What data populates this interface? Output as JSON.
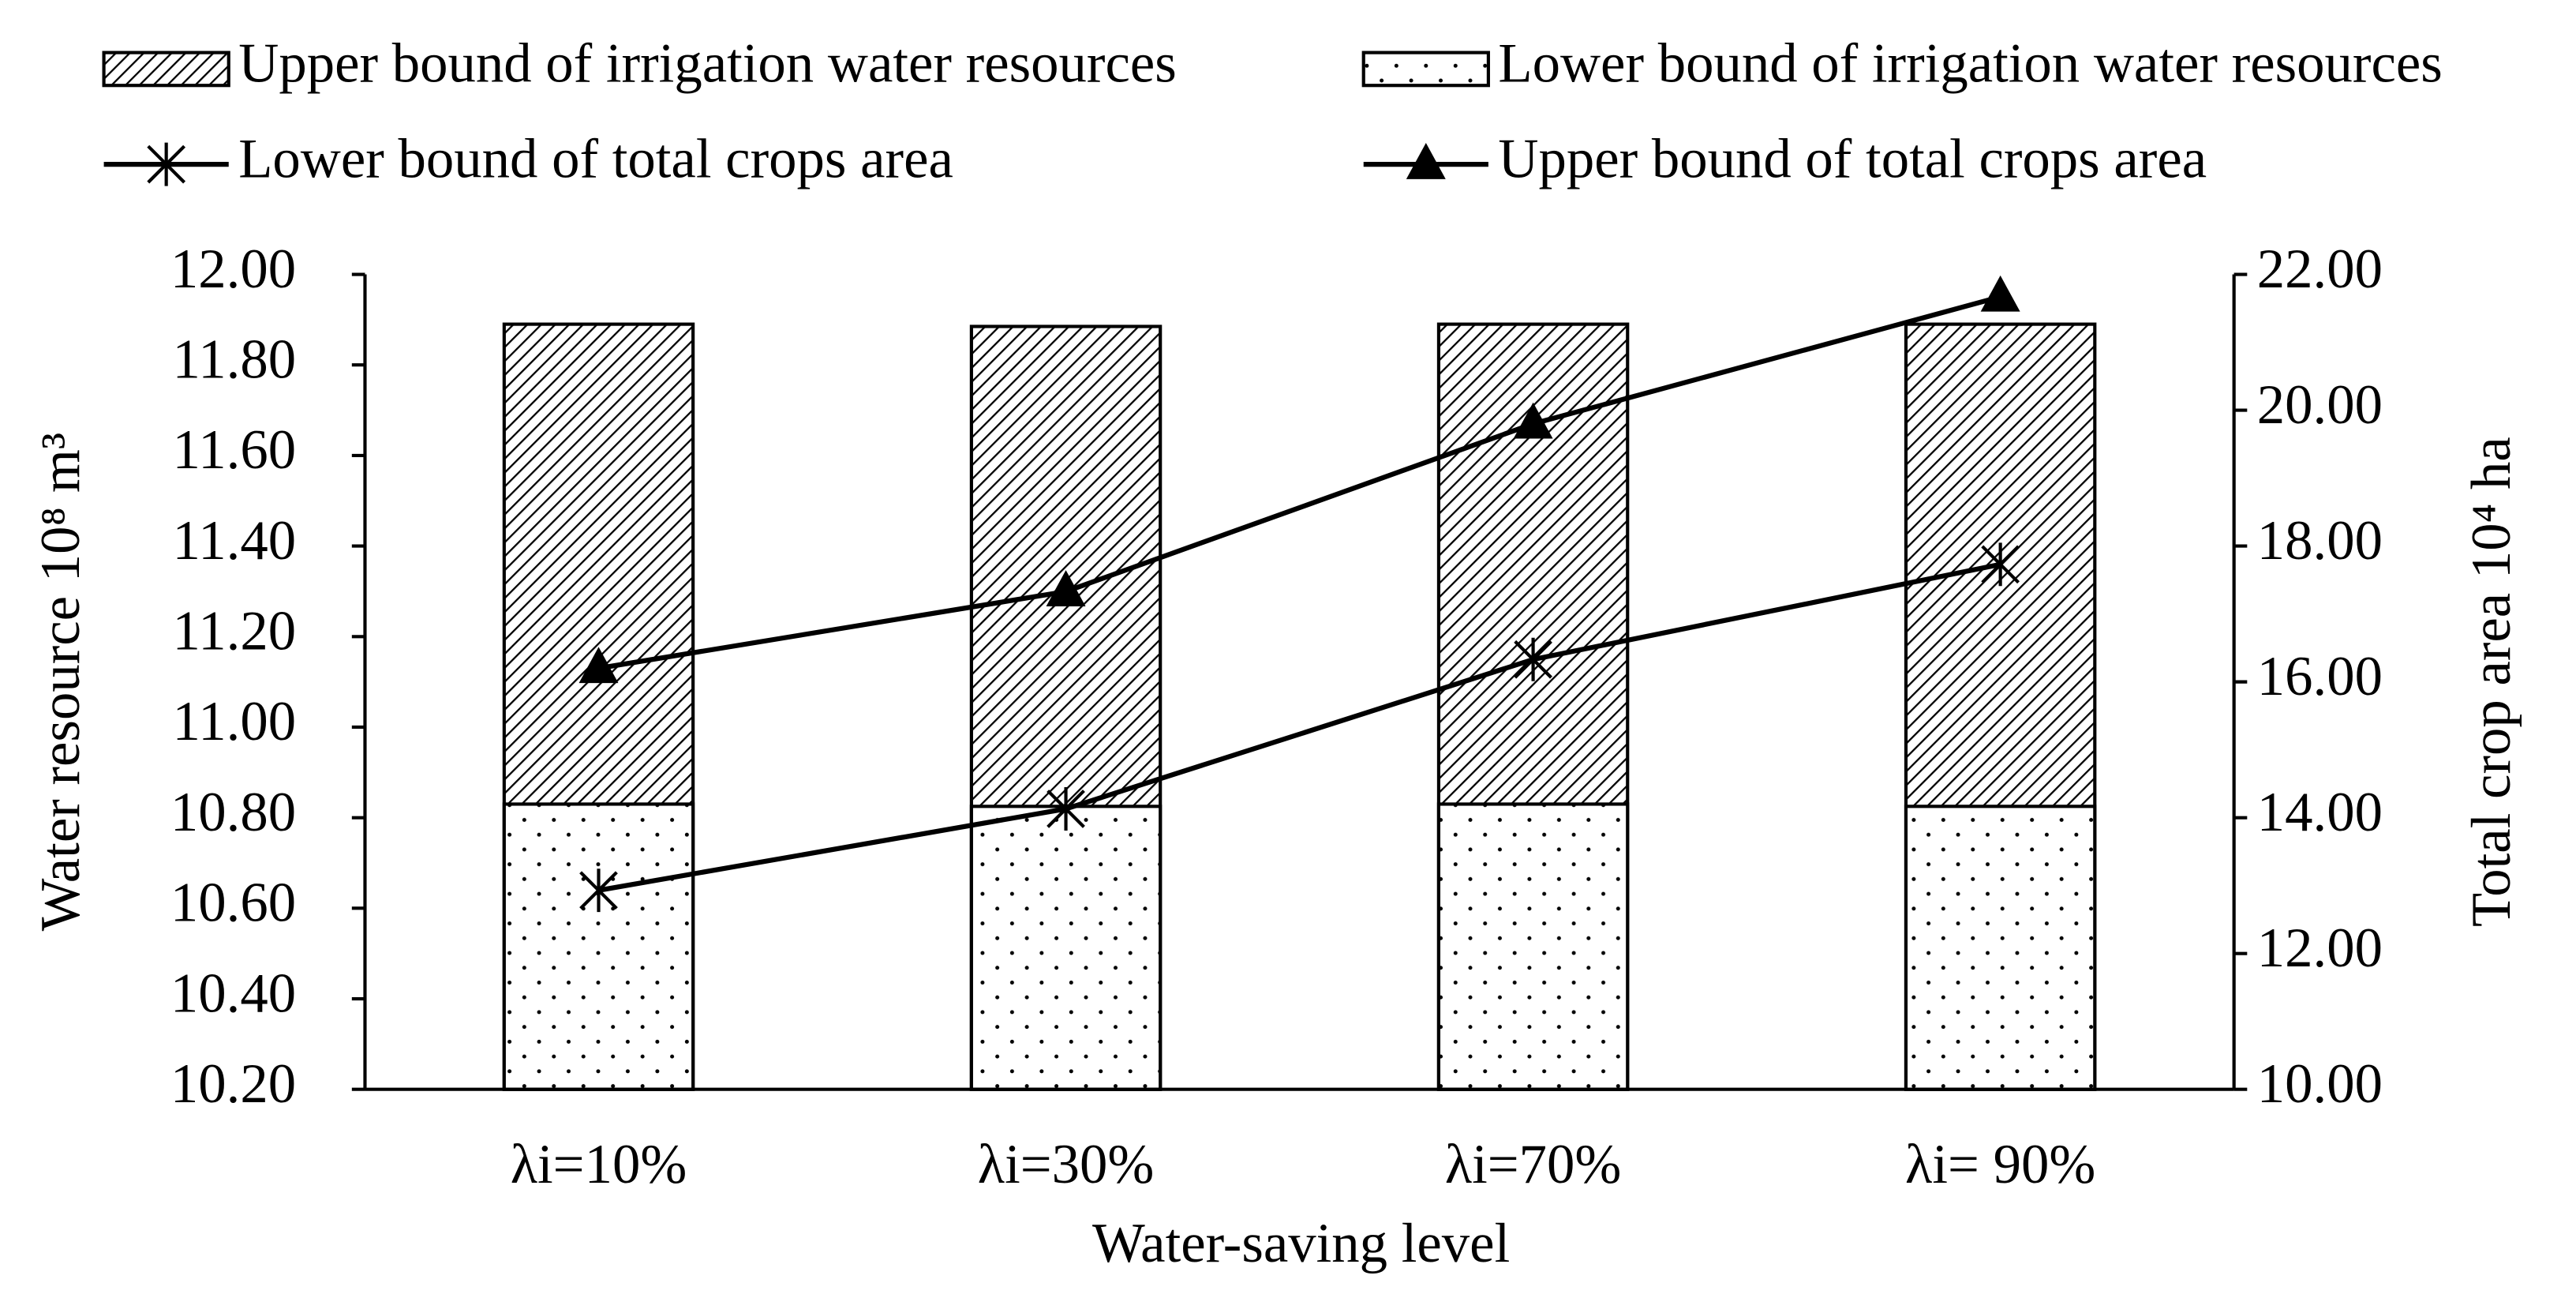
{
  "chart_data": {
    "type": "bar",
    "categories": [
      "λi=10%",
      "λi=30%",
      "λi=70%",
      "λi= 90%"
    ],
    "xlabel": "Water-saving level",
    "ylabel": "Water resource 10⁸ m³",
    "y2label": "Total crop area 10⁴ ha",
    "ylim": [
      10.2,
      12
    ],
    "yticks": [
      {
        "value": 10.2,
        "label": "10.20"
      },
      {
        "value": 10.4,
        "label": "10.40"
      },
      {
        "value": 10.6,
        "label": "10.60"
      },
      {
        "value": 10.8,
        "label": "10.80"
      },
      {
        "value": 11,
        "label": "11.00"
      },
      {
        "value": 11.2,
        "label": "11.20"
      },
      {
        "value": 11.4,
        "label": "11.40"
      },
      {
        "value": 11.6,
        "label": "11.60"
      },
      {
        "value": 11.8,
        "label": "11.80"
      },
      {
        "value": 12,
        "label": "12.00"
      }
    ],
    "y2lim": [
      10,
      22
    ],
    "y2ticks": [
      {
        "value": 10,
        "label": "10.00"
      },
      {
        "value": 12,
        "label": "12.00"
      },
      {
        "value": 14,
        "label": "14.00"
      },
      {
        "value": 16,
        "label": "16.00"
      },
      {
        "value": 18,
        "label": "18.00"
      },
      {
        "value": 20,
        "label": "20.00"
      },
      {
        "value": 22,
        "label": "22.00"
      }
    ],
    "grid": false,
    "series": [
      {
        "name": "Upper bound of irrigation water resources",
        "type": "bar",
        "pattern": "hatch",
        "color": "#000000",
        "values": [
          11.89,
          11.885,
          11.89,
          11.89
        ]
      },
      {
        "name": "Lower bound of irrigation water resources",
        "type": "bar",
        "pattern": "dots",
        "color": "#000000",
        "values": [
          10.83,
          10.825,
          10.83,
          10.825
        ]
      },
      {
        "name": "Lower bound of total crops area",
        "type": "line",
        "marker": "asterisk",
        "axis": "y2",
        "color": "#000000",
        "values": [
          12.93,
          14.13,
          16.33,
          17.73
        ]
      },
      {
        "name": "Upper bound of total crops area",
        "type": "line",
        "marker": "triangle",
        "axis": "y2",
        "color": "#000000",
        "values": [
          16.2,
          17.33,
          19.8,
          21.67
        ]
      }
    ]
  }
}
